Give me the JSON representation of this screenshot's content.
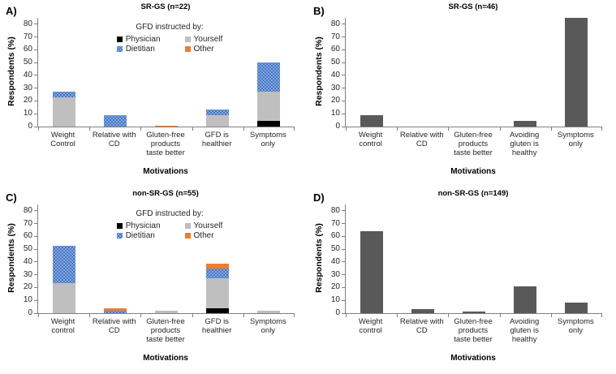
{
  "figure": {
    "background": "#ffffff",
    "axis_color": "#7f7f7f",
    "text_color": "#262626"
  },
  "chart_data": [
    {
      "panel": "A)",
      "type": "bar",
      "stacked": true,
      "title": "SR-GS (n=22)",
      "ylabel": "Respondents (%)",
      "xlabel": "Motivations",
      "ylim": [
        0,
        85
      ],
      "yticks": [
        0,
        10,
        20,
        30,
        40,
        50,
        60,
        70,
        80
      ],
      "grid": false,
      "categories": [
        "Weight Control",
        "Relative with CD",
        "Gluten-free products taste better",
        "GFD is healthier",
        "Symptoms only"
      ],
      "legend": {
        "position": "inside-top",
        "title": "GFD instructed by:",
        "entries": [
          {
            "label": "Physician",
            "color": "#000000",
            "pattern": "solid"
          },
          {
            "label": "Yourself",
            "color": "#BFBFBF",
            "pattern": "solid"
          },
          {
            "label": "Dietitian",
            "color": "#4472C4",
            "pattern": "dots"
          },
          {
            "label": "Other",
            "color": "#ED7D31",
            "pattern": "solid"
          }
        ]
      },
      "stack_order": "bottom-to-top",
      "series": [
        {
          "name": "Physician",
          "color": "#000000",
          "pattern": "solid",
          "values": [
            0,
            0,
            0,
            0,
            4.5
          ]
        },
        {
          "name": "Yourself",
          "color": "#BFBFBF",
          "pattern": "solid",
          "values": [
            22.7,
            0,
            0,
            9.1,
            22.7
          ]
        },
        {
          "name": "Dietitian",
          "color": "#4472C4",
          "pattern": "dots",
          "values": [
            4.5,
            9.1,
            0,
            4.5,
            22.7
          ]
        },
        {
          "name": "Other",
          "color": "#ED7D31",
          "pattern": "solid",
          "values": [
            0,
            0,
            0.9,
            0,
            0
          ]
        }
      ]
    },
    {
      "panel": "B)",
      "type": "bar",
      "stacked": false,
      "title": "SR-GS (n=46)",
      "ylabel": "Respondents (%)",
      "xlabel": "Motivations",
      "ylim": [
        0,
        85
      ],
      "yticks": [
        0,
        10,
        20,
        30,
        40,
        50,
        60,
        70,
        80
      ],
      "grid": false,
      "categories": [
        "Weight control",
        "Relative with CD",
        "Gluten-free products taste better",
        "Avoiding gluten is healthy",
        "Symptoms only"
      ],
      "series": [
        {
          "name": "Respondents",
          "color": "#595959",
          "pattern": "solid",
          "values": [
            8.7,
            0,
            0,
            4.3,
            84.8
          ]
        }
      ]
    },
    {
      "panel": "C)",
      "type": "bar",
      "stacked": true,
      "title": "non-SR-GS (n=55)",
      "ylabel": "Respondents (%)",
      "xlabel": "Motivations",
      "ylim": [
        0,
        85
      ],
      "yticks": [
        0,
        10,
        20,
        30,
        40,
        50,
        60,
        70,
        80
      ],
      "grid": false,
      "categories": [
        "Weight control",
        "Relative with CD",
        "Gluten-free products taste better",
        "GFD is healthier",
        "Symptoms only"
      ],
      "legend": {
        "position": "inside-top",
        "title": "GFD instructed by:",
        "entries": [
          {
            "label": "Physician",
            "color": "#000000",
            "pattern": "solid"
          },
          {
            "label": "Yourself",
            "color": "#BFBFBF",
            "pattern": "solid"
          },
          {
            "label": "Dietitian",
            "color": "#4472C4",
            "pattern": "dots"
          },
          {
            "label": "Other",
            "color": "#ED7D31",
            "pattern": "solid"
          }
        ]
      },
      "stack_order": "bottom-to-top",
      "series": [
        {
          "name": "Physician",
          "color": "#000000",
          "pattern": "solid",
          "values": [
            0,
            0,
            0,
            3.6,
            0
          ]
        },
        {
          "name": "Yourself",
          "color": "#BFBFBF",
          "pattern": "solid",
          "values": [
            23.6,
            0,
            1.8,
            24.0,
            1.8
          ]
        },
        {
          "name": "Dietitian",
          "color": "#4472C4",
          "pattern": "dots",
          "values": [
            29.1,
            1.8,
            0,
            7.3,
            0
          ]
        },
        {
          "name": "Other",
          "color": "#ED7D31",
          "pattern": "solid",
          "values": [
            0,
            1.8,
            0,
            3.6,
            0
          ]
        }
      ]
    },
    {
      "panel": "D)",
      "type": "bar",
      "stacked": false,
      "title": "non-SR-GS (n=149)",
      "ylabel": "Respondents (%)",
      "xlabel": "Motivations",
      "ylim": [
        0,
        85
      ],
      "yticks": [
        0,
        10,
        20,
        30,
        40,
        50,
        60,
        70,
        80
      ],
      "grid": false,
      "categories": [
        "Weight control",
        "Relative with CD",
        "Gluten-free products taste better",
        "Avoiding gluten is healthy",
        "Symptoms only"
      ],
      "series": [
        {
          "name": "Respondents",
          "color": "#595959",
          "pattern": "solid",
          "values": [
            63.8,
            3.4,
            1.3,
            20.8,
            8.1
          ]
        }
      ]
    }
  ]
}
